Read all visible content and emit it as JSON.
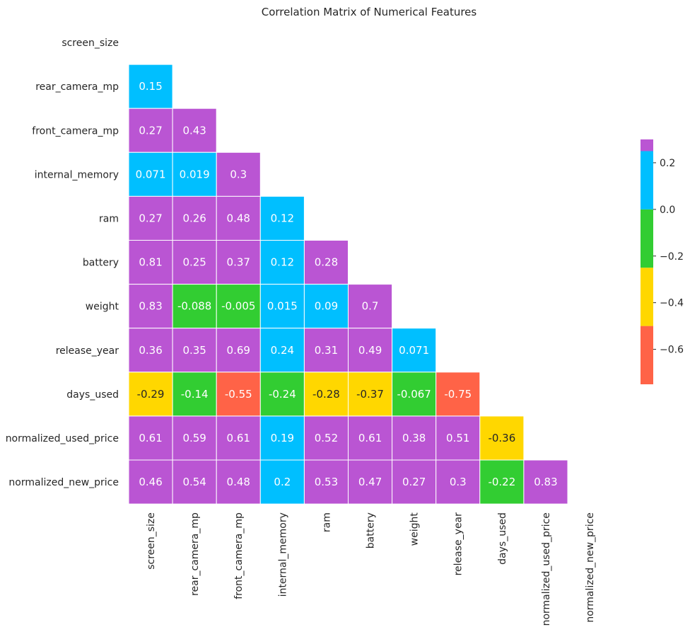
{
  "chart_data": {
    "type": "heatmap",
    "title": "Correlation Matrix of Numerical Features",
    "features": [
      "screen_size",
      "rear_camera_mp",
      "front_camera_mp",
      "internal_memory",
      "ram",
      "battery",
      "weight",
      "release_year",
      "days_used",
      "normalized_used_price",
      "normalized_new_price"
    ],
    "mask": "upper-triangle-and-diagonal",
    "matrix": [
      [
        null,
        null,
        null,
        null,
        null,
        null,
        null,
        null,
        null,
        null,
        null
      ],
      [
        0.15,
        null,
        null,
        null,
        null,
        null,
        null,
        null,
        null,
        null,
        null
      ],
      [
        0.27,
        0.43,
        null,
        null,
        null,
        null,
        null,
        null,
        null,
        null,
        null
      ],
      [
        0.071,
        0.019,
        0.3,
        null,
        null,
        null,
        null,
        null,
        null,
        null,
        null
      ],
      [
        0.27,
        0.26,
        0.48,
        0.12,
        null,
        null,
        null,
        null,
        null,
        null,
        null
      ],
      [
        0.81,
        0.25,
        0.37,
        0.12,
        0.28,
        null,
        null,
        null,
        null,
        null,
        null
      ],
      [
        0.83,
        -0.088,
        -0.005,
        0.015,
        0.09,
        0.7,
        null,
        null,
        null,
        null,
        null
      ],
      [
        0.36,
        0.35,
        0.69,
        0.24,
        0.31,
        0.49,
        0.071,
        null,
        null,
        null,
        null
      ],
      [
        -0.29,
        -0.14,
        -0.55,
        -0.24,
        -0.28,
        -0.37,
        -0.067,
        -0.75,
        null,
        null,
        null
      ],
      [
        0.61,
        0.59,
        0.61,
        0.19,
        0.52,
        0.61,
        0.38,
        0.51,
        -0.36,
        null,
        null
      ],
      [
        0.46,
        0.54,
        0.48,
        0.2,
        0.53,
        0.47,
        0.27,
        0.3,
        -0.22,
        0.83,
        null
      ]
    ],
    "colorbar": {
      "range": [
        -0.75,
        0.3
      ],
      "bins": [
        {
          "from": -0.75,
          "to": -0.5,
          "color": "#ff6347"
        },
        {
          "from": -0.5,
          "to": -0.25,
          "color": "#ffd700"
        },
        {
          "from": -0.25,
          "to": 0.0,
          "color": "#32cd32"
        },
        {
          "from": 0.0,
          "to": 0.25,
          "color": "#00bfff"
        },
        {
          "from": 0.25,
          "to": 0.3,
          "color": "#ba55d3"
        }
      ],
      "ticks": [
        0.2,
        0.0,
        -0.2,
        -0.4,
        -0.6
      ],
      "tick_labels": [
        "0.2",
        "0.0",
        "−0.2",
        "−0.4",
        "−0.6"
      ]
    },
    "grid_lines": "white",
    "legend": "colorbar-right"
  }
}
